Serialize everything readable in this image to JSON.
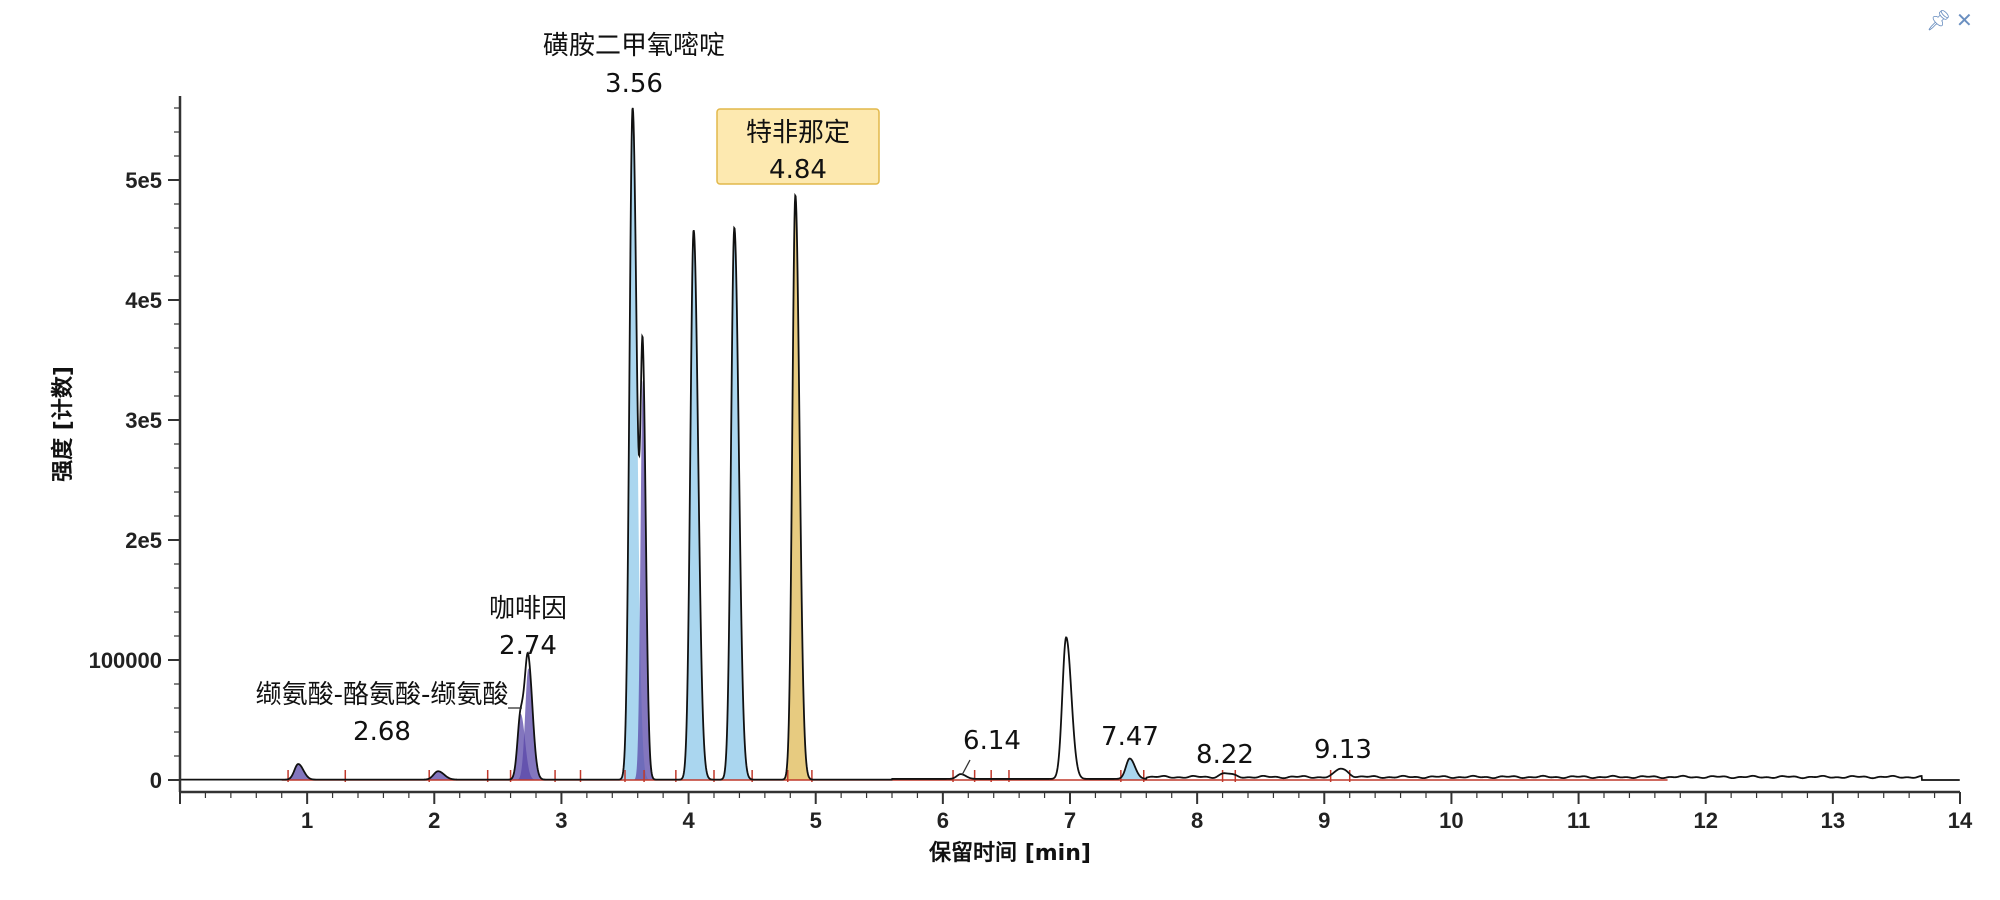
{
  "window": {
    "pin_icon": "pin-icon",
    "close_icon": "close-icon"
  },
  "colors": {
    "trace": "#111111",
    "baseline": "#c0392b",
    "fill_blue": "#8ec8ea",
    "fill_purple": "#5a48a8",
    "fill_gold": "#d4a017",
    "highlight_bg": "#fde9b0",
    "highlight_border": "#e2b84a"
  },
  "chart_data": {
    "type": "line",
    "title": "",
    "xlabel": "保留时间 [min]",
    "ylabel": "强度 [计数]",
    "xlim": [
      0,
      14
    ],
    "ylim": [
      -10000,
      570000
    ],
    "x_ticks": [
      1,
      2,
      3,
      4,
      5,
      6,
      7,
      8,
      9,
      10,
      11,
      12,
      13,
      14
    ],
    "x_tick_labels": [
      "1",
      "2",
      "3",
      "4",
      "5",
      "6",
      "7",
      "8",
      "9",
      "10",
      "11",
      "12",
      "13",
      "14"
    ],
    "y_ticks": [
      0,
      100000,
      200000,
      300000,
      400000,
      500000
    ],
    "y_tick_labels": [
      "0",
      "100000",
      "2e5",
      "3e5",
      "4e5",
      "5e5"
    ],
    "grid": false,
    "peaks": [
      {
        "rt": 0.93,
        "height": 13000,
        "width": 0.03,
        "fill": "purple"
      },
      {
        "rt": 2.03,
        "height": 7000,
        "width": 0.035,
        "fill": "purple"
      },
      {
        "rt": 2.68,
        "height": 55000,
        "width": 0.025,
        "fill": "purple"
      },
      {
        "rt": 2.74,
        "height": 93000,
        "width": 0.025,
        "fill": "purple"
      },
      {
        "rt": 3.56,
        "height": 560000,
        "width": 0.025,
        "fill": "blue"
      },
      {
        "rt": 3.64,
        "height": 333000,
        "width": 0.018,
        "fill": "purple"
      },
      {
        "rt": 4.04,
        "height": 458000,
        "width": 0.026,
        "fill": "blue"
      },
      {
        "rt": 4.36,
        "height": 460000,
        "width": 0.026,
        "fill": "blue"
      },
      {
        "rt": 4.84,
        "height": 487000,
        "width": 0.024,
        "fill": "gold"
      },
      {
        "rt": 6.14,
        "height": 4000,
        "width": 0.03,
        "fill": "none"
      },
      {
        "rt": 6.97,
        "height": 118000,
        "width": 0.03,
        "fill": "none"
      },
      {
        "rt": 7.47,
        "height": 17000,
        "width": 0.03,
        "fill": "blue"
      },
      {
        "rt": 8.22,
        "height": 3000,
        "width": 0.04,
        "fill": "none"
      },
      {
        "rt": 9.13,
        "height": 7000,
        "width": 0.04,
        "fill": "none"
      }
    ],
    "annotations": [
      {
        "name": "缬氨酸-酪氨酸-缬氨酸",
        "rt": "2.68",
        "x": 2.68,
        "highlight": false
      },
      {
        "name": "咖啡因",
        "rt": "2.74",
        "x": 2.74,
        "highlight": false
      },
      {
        "name": "磺胺二甲氧嘧啶",
        "rt": "3.56",
        "x": 3.56,
        "highlight": false
      },
      {
        "name": "特非那定",
        "rt": "4.84",
        "x": 4.84,
        "highlight": true
      },
      {
        "name": "",
        "rt": "6.14",
        "x": 6.14,
        "highlight": false
      },
      {
        "name": "",
        "rt": "7.47",
        "x": 7.47,
        "highlight": false
      },
      {
        "name": "",
        "rt": "8.22",
        "x": 8.22,
        "highlight": false
      },
      {
        "name": "",
        "rt": "9.13",
        "x": 9.13,
        "highlight": false
      }
    ],
    "integration_marks": [
      0.85,
      1.3,
      1.96,
      2.42,
      2.6,
      2.95,
      3.15,
      3.5,
      3.65,
      3.9,
      4.2,
      4.5,
      4.78,
      4.97,
      6.08,
      6.25,
      6.38,
      6.52,
      7.4,
      7.58,
      8.2,
      8.3,
      9.05,
      9.2
    ]
  }
}
